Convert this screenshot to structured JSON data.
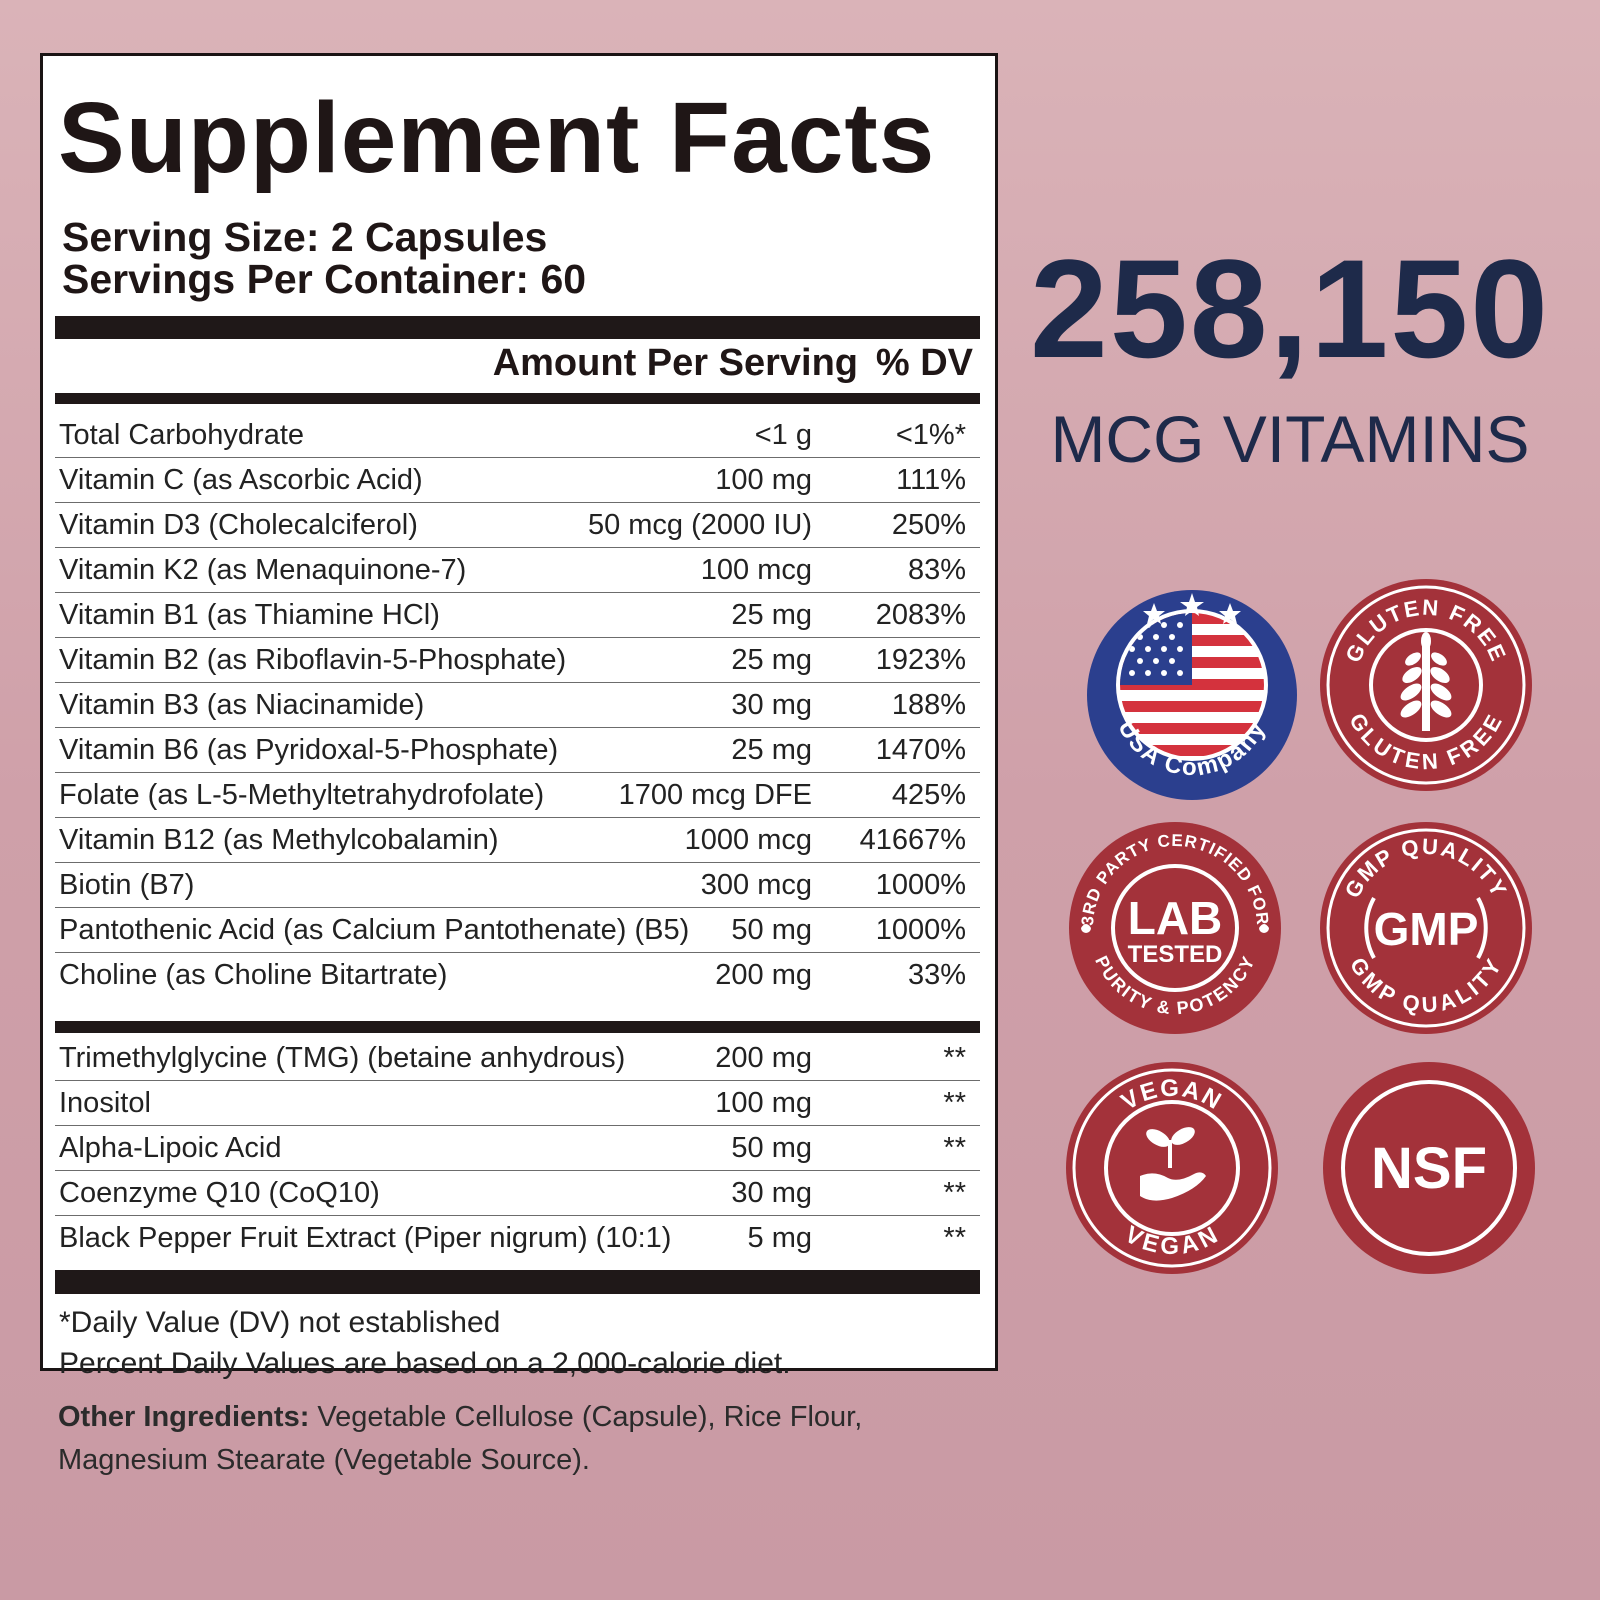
{
  "title": "Supplement Facts",
  "serving_size": "Serving Size: 2 Capsules",
  "servings_per_container": "Servings Per Container: 60",
  "header": {
    "amount": "Amount Per Serving",
    "dv": "% DV"
  },
  "nutrients": [
    {
      "name": "Total Carbohydrate",
      "amount": "<1 g",
      "dv": "<1%*"
    },
    {
      "name": "Vitamin C (as Ascorbic Acid)",
      "amount": "100 mg",
      "dv": "111%"
    },
    {
      "name": "Vitamin D3 (Cholecalciferol)",
      "amount": "50 mcg (2000 IU)",
      "dv": "250%"
    },
    {
      "name": "Vitamin K2 (as Menaquinone-7)",
      "amount": "100 mcg",
      "dv": "83%"
    },
    {
      "name": "Vitamin B1 (as Thiamine HCl)",
      "amount": "25 mg",
      "dv": "2083%"
    },
    {
      "name": "Vitamin B2 (as Riboflavin-5-Phosphate)",
      "amount": "25 mg",
      "dv": "1923%"
    },
    {
      "name": "Vitamin B3 (as Niacinamide)",
      "amount": "30 mg",
      "dv": "188%"
    },
    {
      "name": "Vitamin B6 (as Pyridoxal-5-Phosphate)",
      "amount": "25 mg",
      "dv": "1470%"
    },
    {
      "name": "Folate (as L-5-Methyltetrahydrofolate)",
      "amount": "1700 mcg DFE",
      "dv": "425%"
    },
    {
      "name": "Vitamin B12 (as Methylcobalamin)",
      "amount": "1000 mcg",
      "dv": "41667%"
    },
    {
      "name": "Biotin (B7)",
      "amount": "300 mcg",
      "dv": "1000%"
    },
    {
      "name": "Pantothenic Acid (as Calcium Pantothenate) (B5)",
      "amount": "50 mg",
      "dv": "1000%"
    },
    {
      "name": "Choline (as Choline Bitartrate)",
      "amount": "200 mg",
      "dv": "33%"
    }
  ],
  "other_nutrients": [
    {
      "name": "Trimethylglycine (TMG) (betaine anhydrous)",
      "amount": "200 mg",
      "dv": "**"
    },
    {
      "name": "Inositol",
      "amount": "100 mg",
      "dv": "**"
    },
    {
      "name": "Alpha-Lipoic Acid",
      "amount": "50 mg",
      "dv": "**"
    },
    {
      "name": "Coenzyme Q10 (CoQ10)",
      "amount": "30 mg",
      "dv": "**"
    },
    {
      "name": "Black Pepper Fruit Extract (Piper nigrum) (10:1)",
      "amount": "5 mg",
      "dv": "**"
    }
  ],
  "footnotes": [
    "*Daily Value (DV) not established",
    "Percent Daily Values are based on a 2,000-calorie diet."
  ],
  "other_ingredients": {
    "label": "Other Ingredients:",
    "text": " Vegetable Cellulose (Capsule), Rice Flour, Magnesium Stearate (Vegetable Source)."
  },
  "highlight": {
    "number": "258,150",
    "caption": "MCG VITAMINS"
  },
  "badges": {
    "usa": {
      "text": "USA Company",
      "icon": "usa-flag-icon"
    },
    "gluten": {
      "text": "GLUTEN FREE",
      "icon": "wheat-icon"
    },
    "lab": {
      "top_text": "3RD PARTY CERTIFIED FOR",
      "bottom_text": "PURITY & POTENCY",
      "line1": "LAB",
      "line2": "TESTED"
    },
    "gmp": {
      "text": "GMP QUALITY",
      "center": "GMP"
    },
    "vegan": {
      "text": "VEGAN",
      "icon": "sprout-hand-icon"
    },
    "nsf": {
      "center": "NSF"
    }
  },
  "colors": {
    "badge_red": "#a3323a",
    "navy": "#1e2a4a",
    "flag_blue": "#2b3f8e",
    "flag_red": "#d4323d",
    "background": "#d3a6ae"
  }
}
